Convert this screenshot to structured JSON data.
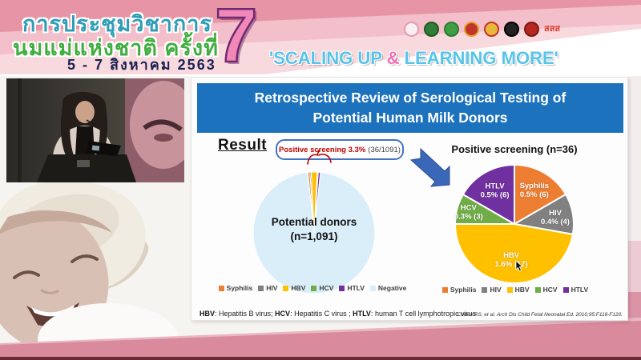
{
  "banner": {
    "title_line1": "การประชุมวิชาการ",
    "title_line2": "นมแม่แห่งชาติ ครั้งที่",
    "date_line": "5 - 7 สิงหาคม 2563",
    "edition_number": "7",
    "tagline_pre": "'SCALING UP ",
    "tagline_amp": "&",
    "tagline_post": " LEARNING MORE'",
    "logos": [
      {
        "name": "breastfeeding-foundation-logo",
        "color": "#faf0f3",
        "ring": "#e39bb2"
      },
      {
        "name": "ministry-of-health-logo",
        "color": "#2f7d36",
        "ring": "#1e5a25"
      },
      {
        "name": "medical-council-logo",
        "color": "#3f9d44",
        "ring": "#2c7a31"
      },
      {
        "name": "royal-college-logo",
        "color": "#c3342b",
        "ring": "#e0a12b"
      },
      {
        "name": "gold-crest-logo",
        "color": "#e8b83a",
        "ring": "#c3342b"
      },
      {
        "name": "pediatric-society-logo",
        "color": "#222222",
        "ring": "#000000"
      },
      {
        "name": "red-emblem-logo",
        "color": "#b5271f",
        "ring": "#7a1a14"
      },
      {
        "name": "thaihealth-sss-logo",
        "text": "สสส",
        "color": "#e03a2f"
      }
    ]
  },
  "video": {
    "label": "presenter speaking at podium"
  },
  "slide": {
    "title_line1": "Retrospective Review of Serological Testing of",
    "title_line2": "Potential Human Milk Donors",
    "result_label": "Result",
    "callout": {
      "highlight": "Positive screening 3.3%",
      "detail": "(36/1091)"
    },
    "footnote": {
      "t1": "HBV",
      "t2": ": Hepatitis B virus; ",
      "t3": "HCV",
      "t4": ": Hepatitis C virus ; ",
      "t5": "HTLV",
      "t6": ": human T cell lymphotropic virus"
    },
    "citation": "Cohen RS, et al. Arch Dis Child Fetal Neonatal Ed. 2010;95:F118-F120."
  },
  "chart_data": [
    {
      "id": "donors-pie",
      "type": "pie",
      "title": "Potential donors (n=1,091)",
      "center_label": [
        "Potential donors",
        "(n=1,091)"
      ],
      "n": 1091,
      "start_angle": -5.9,
      "gap_width": 1,
      "legend_position": "bottom",
      "slices": [
        {
          "label": "Syphilis",
          "count": 6,
          "color": "#ED7D31"
        },
        {
          "label": "HIV",
          "count": 4,
          "color": "#7F7F7F"
        },
        {
          "label": "HBV",
          "count": 17,
          "color": "#FFC000"
        },
        {
          "label": "HCV",
          "count": 3,
          "color": "#70AD47"
        },
        {
          "label": "HTLV",
          "count": 6,
          "color": "#7030A0"
        },
        {
          "label": "Negative",
          "count": 1055,
          "color": "#daeef9"
        }
      ],
      "legend": [
        "Syphilis",
        "HIV",
        "HBV",
        "HCV",
        "HTLV",
        "Negative"
      ]
    },
    {
      "id": "positive-pie",
      "type": "pie",
      "title": "Positive screening (n=36)",
      "n": 36,
      "start_angle": 0,
      "gap_width": 2,
      "legend_position": "bottom",
      "slices": [
        {
          "label": "Syphilis",
          "pct": "0.5%",
          "count": 6,
          "color": "#ED7D31",
          "lr": 0.67
        },
        {
          "label": "HIV",
          "pct": "0.4%",
          "count": 4,
          "color": "#808080",
          "lr": 0.7
        },
        {
          "label": "HBV",
          "pct": "1.6%",
          "count": 17,
          "color": "#FFC000",
          "lr": 0.6
        },
        {
          "label": "HCV",
          "pct": "0.3%",
          "count": 3,
          "color": "#70AD47",
          "lr": 0.8
        },
        {
          "label": "HTLV",
          "pct": "0.5%",
          "count": 6,
          "color": "#7030A0",
          "lr": 0.66
        }
      ],
      "legend": [
        "Syphilis",
        "HIV",
        "HBV",
        "HCV",
        "HTLV"
      ]
    }
  ]
}
